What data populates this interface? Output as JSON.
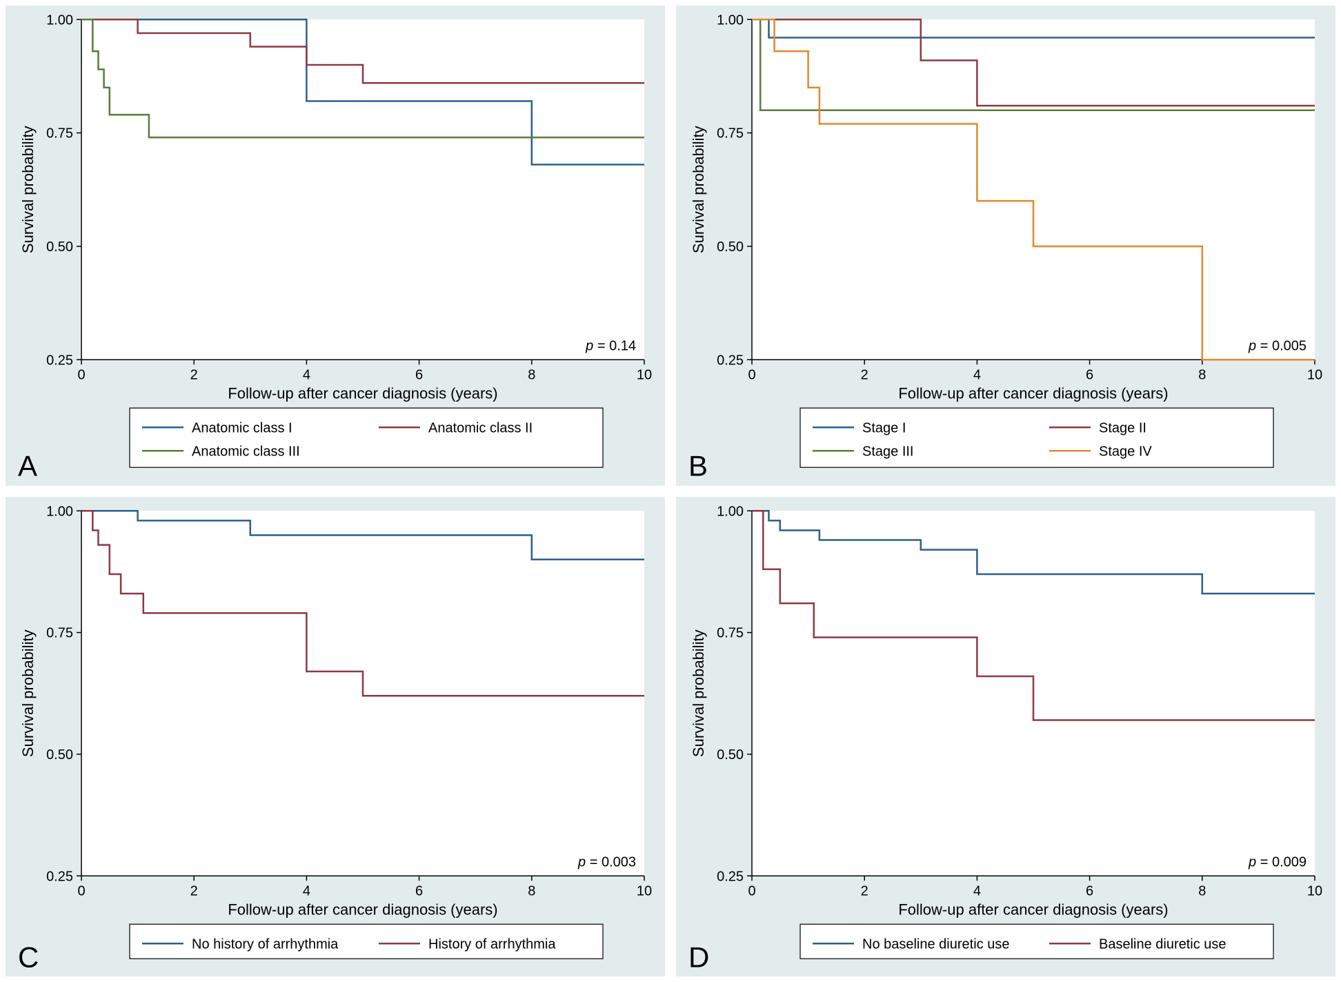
{
  "global": {
    "plot_bg": "#e3ecec",
    "inner_bg": "#ffffff",
    "axis_color": "#000000",
    "text_color": "#000000",
    "label_font_size": 22,
    "tick_font_size": 20,
    "legend_font_size": 20,
    "pvalue_font_size": 20,
    "panel_label_font_size": 42,
    "line_width": 2.5,
    "xlabel": "Follow-up after cancer diagnosis (years)",
    "ylabel": "Survival probability",
    "xlim": [
      0,
      10
    ],
    "ylim": [
      0.25,
      1.0
    ],
    "xticks": [
      0,
      2,
      4,
      6,
      8,
      10
    ],
    "yticks": [
      0.25,
      0.5,
      0.75,
      1.0
    ],
    "ytick_labels": [
      "0.25",
      "0.50",
      "0.75",
      "1.00"
    ]
  },
  "panels": {
    "A": {
      "label": "A",
      "pvalue": "p = 0.14",
      "series": [
        {
          "name": "Anatomic class I",
          "color": "#2b5f8e",
          "points": [
            [
              0,
              1.0
            ],
            [
              4,
              1.0
            ],
            [
              4,
              0.82
            ],
            [
              8,
              0.82
            ],
            [
              8,
              0.68
            ],
            [
              10,
              0.68
            ]
          ]
        },
        {
          "name": "Anatomic class II",
          "color": "#8e3844",
          "points": [
            [
              0,
              1.0
            ],
            [
              1,
              1.0
            ],
            [
              1,
              0.97
            ],
            [
              3,
              0.97
            ],
            [
              3,
              0.94
            ],
            [
              4,
              0.94
            ],
            [
              4,
              0.9
            ],
            [
              5,
              0.9
            ],
            [
              5,
              0.86
            ],
            [
              10,
              0.86
            ]
          ]
        },
        {
          "name": "Anatomic class III",
          "color": "#5d7a3a",
          "points": [
            [
              0,
              1.0
            ],
            [
              0.2,
              1.0
            ],
            [
              0.2,
              0.93
            ],
            [
              0.3,
              0.93
            ],
            [
              0.3,
              0.89
            ],
            [
              0.4,
              0.89
            ],
            [
              0.4,
              0.85
            ],
            [
              0.5,
              0.85
            ],
            [
              0.5,
              0.79
            ],
            [
              1.2,
              0.79
            ],
            [
              1.2,
              0.74
            ],
            [
              10,
              0.74
            ]
          ]
        }
      ],
      "legend_rows": [
        [
          "Anatomic class I",
          "Anatomic class II"
        ],
        [
          "Anatomic class III"
        ]
      ],
      "legend_colors": [
        [
          "#2b5f8e",
          "#8e3844"
        ],
        [
          "#5d7a3a"
        ]
      ]
    },
    "B": {
      "label": "B",
      "pvalue": "p = 0.005",
      "series": [
        {
          "name": "Stage I",
          "color": "#2b5f8e",
          "points": [
            [
              0,
              1.0
            ],
            [
              0.3,
              1.0
            ],
            [
              0.3,
              0.96
            ],
            [
              10,
              0.96
            ]
          ]
        },
        {
          "name": "Stage II",
          "color": "#8e3844",
          "points": [
            [
              0,
              1.0
            ],
            [
              3,
              1.0
            ],
            [
              3,
              0.91
            ],
            [
              4,
              0.91
            ],
            [
              4,
              0.81
            ],
            [
              10,
              0.81
            ]
          ]
        },
        {
          "name": "Stage III",
          "color": "#5d7a3a",
          "points": [
            [
              0,
              1.0
            ],
            [
              0.15,
              1.0
            ],
            [
              0.15,
              0.8
            ],
            [
              10,
              0.8
            ]
          ]
        },
        {
          "name": "Stage IV",
          "color": "#e08a2c",
          "points": [
            [
              0,
              1.0
            ],
            [
              0.4,
              1.0
            ],
            [
              0.4,
              0.93
            ],
            [
              1.0,
              0.93
            ],
            [
              1.0,
              0.85
            ],
            [
              1.2,
              0.85
            ],
            [
              1.2,
              0.77
            ],
            [
              4,
              0.77
            ],
            [
              4,
              0.6
            ],
            [
              5,
              0.6
            ],
            [
              5,
              0.5
            ],
            [
              8,
              0.5
            ],
            [
              8,
              0.25
            ],
            [
              10,
              0.25
            ]
          ]
        }
      ],
      "legend_rows": [
        [
          "Stage I",
          "Stage II"
        ],
        [
          "Stage III",
          "Stage IV"
        ]
      ],
      "legend_colors": [
        [
          "#2b5f8e",
          "#8e3844"
        ],
        [
          "#5d7a3a",
          "#e08a2c"
        ]
      ]
    },
    "C": {
      "label": "C",
      "pvalue": "p = 0.003",
      "series": [
        {
          "name": "No history of arrhythmia",
          "color": "#2b5f8e",
          "points": [
            [
              0,
              1.0
            ],
            [
              1,
              1.0
            ],
            [
              1,
              0.98
            ],
            [
              3,
              0.98
            ],
            [
              3,
              0.95
            ],
            [
              8,
              0.95
            ],
            [
              8,
              0.9
            ],
            [
              10,
              0.9
            ]
          ]
        },
        {
          "name": "History of arrhythmia",
          "color": "#8e3844",
          "points": [
            [
              0,
              1.0
            ],
            [
              0.2,
              1.0
            ],
            [
              0.2,
              0.96
            ],
            [
              0.3,
              0.96
            ],
            [
              0.3,
              0.93
            ],
            [
              0.5,
              0.93
            ],
            [
              0.5,
              0.87
            ],
            [
              0.7,
              0.87
            ],
            [
              0.7,
              0.83
            ],
            [
              1.1,
              0.83
            ],
            [
              1.1,
              0.79
            ],
            [
              4,
              0.79
            ],
            [
              4,
              0.67
            ],
            [
              5,
              0.67
            ],
            [
              5,
              0.62
            ],
            [
              10,
              0.62
            ]
          ]
        }
      ],
      "legend_rows": [
        [
          "No history of arrhythmia",
          "History of arrhythmia"
        ]
      ],
      "legend_colors": [
        [
          "#2b5f8e",
          "#8e3844"
        ]
      ]
    },
    "D": {
      "label": "D",
      "pvalue": "p = 0.009",
      "series": [
        {
          "name": "No baseline diuretic use",
          "color": "#2b5f8e",
          "points": [
            [
              0,
              1.0
            ],
            [
              0.3,
              1.0
            ],
            [
              0.3,
              0.98
            ],
            [
              0.5,
              0.98
            ],
            [
              0.5,
              0.96
            ],
            [
              1.2,
              0.96
            ],
            [
              1.2,
              0.94
            ],
            [
              3,
              0.94
            ],
            [
              3,
              0.92
            ],
            [
              4,
              0.92
            ],
            [
              4,
              0.87
            ],
            [
              8,
              0.87
            ],
            [
              8,
              0.83
            ],
            [
              10,
              0.83
            ]
          ]
        },
        {
          "name": "Baseline diuretic use",
          "color": "#8e3844",
          "points": [
            [
              0,
              1.0
            ],
            [
              0.2,
              1.0
            ],
            [
              0.2,
              0.88
            ],
            [
              0.5,
              0.88
            ],
            [
              0.5,
              0.81
            ],
            [
              1.1,
              0.81
            ],
            [
              1.1,
              0.74
            ],
            [
              4,
              0.74
            ],
            [
              4,
              0.66
            ],
            [
              5,
              0.66
            ],
            [
              5,
              0.57
            ],
            [
              10,
              0.57
            ]
          ]
        }
      ],
      "legend_rows": [
        [
          "No baseline diuretic use",
          "Baseline diuretic use"
        ]
      ],
      "legend_colors": [
        [
          "#2b5f8e",
          "#8e3844"
        ]
      ]
    }
  }
}
